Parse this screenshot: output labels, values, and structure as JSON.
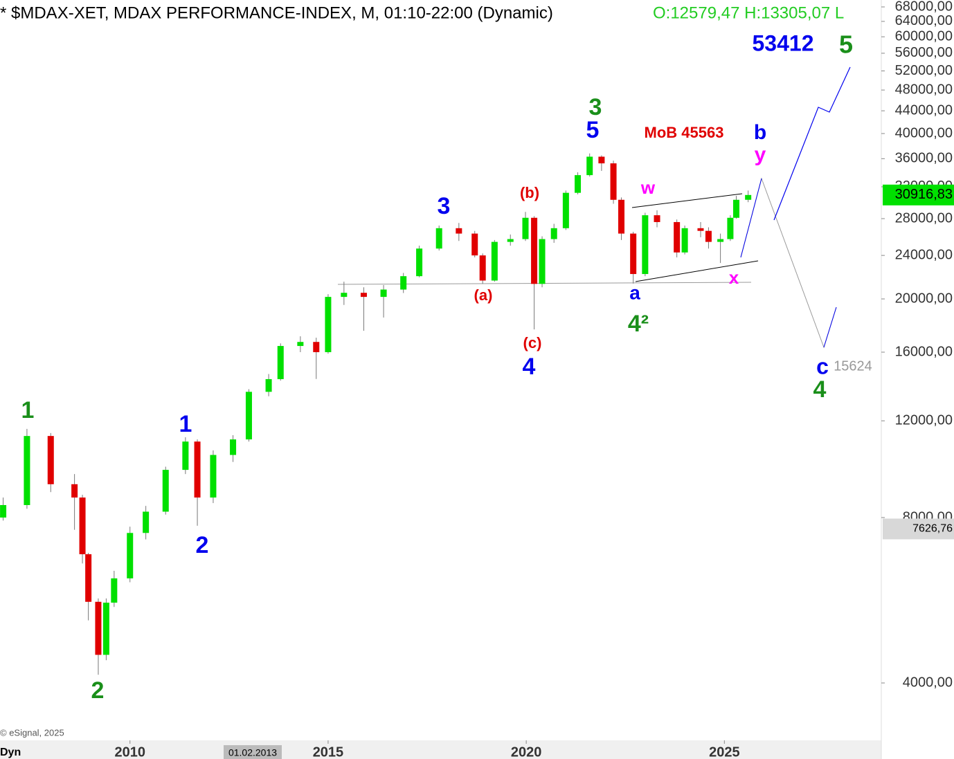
{
  "chart_data": {
    "type": "candlestick",
    "title": "* $MDAX-XET, MDAX PERFORMANCE-INDEX, M, 01:10-22:00 (Dynamic)",
    "subtitle": "O:12579,47 H:13305,07 L",
    "log_scale": true,
    "up_color": "#00e000",
    "down_color": "#e00000",
    "x": [
      2006.8,
      2007.4,
      2008.0,
      2008.6,
      2008.8,
      2008.95,
      2009.2,
      2009.4,
      2009.6,
      2010.0,
      2010.4,
      2010.9,
      2011.4,
      2011.7,
      2012.1,
      2012.6,
      2013.0,
      2013.5,
      2013.8,
      2014.3,
      2014.7,
      2015.0,
      2015.4,
      2015.9,
      2016.4,
      2016.9,
      2017.3,
      2017.8,
      2018.3,
      2018.7,
      2018.9,
      2019.2,
      2019.6,
      2019.98,
      2020.2,
      2020.4,
      2020.7,
      2021.0,
      2021.3,
      2021.6,
      2021.9,
      2022.2,
      2022.4,
      2022.7,
      2023.0,
      2023.3,
      2023.8,
      2024.0,
      2024.4,
      2024.6,
      2024.9,
      2025.15,
      2025.3,
      2025.6
    ],
    "open": [
      8000,
      8430,
      11260,
      9200,
      8700,
      6860,
      5620,
      4500,
      5600,
      6200,
      7500,
      8200,
      9770,
      11000,
      8700,
      10400,
      11100,
      13550,
      14290,
      16420,
      16700,
      16000,
      20170,
      20520,
      20170,
      20800,
      22000,
      24700,
      26900,
      26300,
      24000,
      21600,
      25400,
      25700,
      28100,
      21300,
      25700,
      26900,
      31200,
      33600,
      36300,
      35300,
      30300,
      26300,
      22200,
      28400,
      27600,
      24300,
      26900,
      26600,
      25400,
      25700,
      28100,
      30300
    ],
    "high": [
      8700,
      11600,
      11400,
      9600,
      8800,
      6900,
      5700,
      5700,
      6400,
      7700,
      8400,
      9900,
      11200,
      11100,
      10600,
      11300,
      13700,
      14600,
      16600,
      17100,
      17000,
      20400,
      21500,
      21000,
      21200,
      22300,
      25000,
      27200,
      27500,
      26600,
      24200,
      25600,
      26200,
      28800,
      28300,
      26000,
      27400,
      31500,
      34000,
      36800,
      36500,
      35700,
      30600,
      26500,
      28700,
      29000,
      27900,
      27200,
      27600,
      27000,
      26300,
      28400,
      30800,
      31500
    ],
    "low": [
      7900,
      8300,
      8900,
      7600,
      6600,
      5200,
      4140,
      4400,
      5500,
      6100,
      7300,
      8100,
      9600,
      7730,
      8500,
      10100,
      11000,
      13300,
      14200,
      16000,
      14300,
      15900,
      19500,
      17500,
      18500,
      20500,
      21900,
      24500,
      25500,
      23800,
      21300,
      21500,
      25000,
      25500,
      17600,
      21000,
      25300,
      26700,
      31000,
      33400,
      34200,
      29800,
      25600,
      21330,
      22000,
      27000,
      23800,
      24100,
      25900,
      24700,
      23250,
      25500,
      28000,
      30000
    ],
    "close": [
      8430,
      11260,
      9200,
      8700,
      6860,
      5620,
      4500,
      5600,
      6200,
      7500,
      8200,
      9770,
      11000,
      8700,
      10400,
      11100,
      13550,
      14290,
      16420,
      16700,
      16000,
      20170,
      20520,
      20170,
      20800,
      22000,
      24700,
      26900,
      26300,
      24000,
      21600,
      25400,
      25700,
      28100,
      21300,
      25700,
      26900,
      31200,
      33600,
      36300,
      35300,
      30300,
      26300,
      22200,
      28400,
      27600,
      24300,
      26900,
      26600,
      25400,
      25700,
      28100,
      30300,
      30917
    ],
    "xlim": [
      2006.72,
      2028.96
    ],
    "xticks": [
      2010,
      2015,
      2020,
      2025
    ],
    "ylim": [
      3145,
      70000
    ],
    "yticks": [
      {
        "value": 4000,
        "label": "4000,00"
      },
      {
        "value": 8000,
        "label": "8000,00"
      },
      {
        "value": 12000,
        "label": "12000,00"
      },
      {
        "value": 16000,
        "label": "16000,00"
      },
      {
        "value": 20000,
        "label": "20000,00"
      },
      {
        "value": 24000,
        "label": "24000,00"
      },
      {
        "value": 28000,
        "label": "28000,00"
      },
      {
        "value": 32000,
        "label": "32000,00"
      },
      {
        "value": 36000,
        "label": "36000,00"
      },
      {
        "value": 40000,
        "label": "40000,00"
      },
      {
        "value": 44000,
        "label": "44000,00"
      },
      {
        "value": 48000,
        "label": "48000,00"
      },
      {
        "value": 52000,
        "label": "52000,00"
      },
      {
        "value": 56000,
        "label": "56000,00"
      },
      {
        "value": 60000,
        "label": "60000,00"
      },
      {
        "value": 64000,
        "label": "64000,00"
      },
      {
        "value": 68000,
        "label": "68000,00"
      }
    ],
    "price_tags": [
      {
        "value": 30916.83,
        "label": "30916,83",
        "color": "#00e000"
      },
      {
        "value": 7626.76,
        "label": "7626,76",
        "color": "#d8d8d8"
      }
    ],
    "annotations": [
      {
        "text": "1",
        "color": "#1a8f1a"
      },
      {
        "text": "2",
        "color": "#1a8f1a"
      },
      {
        "text": "1",
        "color": "#0000ee"
      },
      {
        "text": "2",
        "color": "#0000ee"
      },
      {
        "text": "3",
        "color": "#0000ee"
      },
      {
        "text": "(a)",
        "color": "#e00000"
      },
      {
        "text": "(b)",
        "color": "#e00000"
      },
      {
        "text": "(c)",
        "color": "#e00000"
      },
      {
        "text": "4",
        "color": "#0000ee"
      },
      {
        "text": "3",
        "color": "#1a8f1a"
      },
      {
        "text": "5",
        "color": "#0000ee"
      },
      {
        "text": "MoB 45563",
        "color": "#e00000"
      },
      {
        "text": "w",
        "color": "#ff00ff"
      },
      {
        "text": "a",
        "color": "#0000ee"
      },
      {
        "text": "4²",
        "color": "#1a8f1a"
      },
      {
        "text": "x",
        "color": "#ff00ff"
      },
      {
        "text": "b",
        "color": "#0000ee"
      },
      {
        "text": "y",
        "color": "#ff00ff"
      },
      {
        "text": "53412",
        "color": "#0000ee"
      },
      {
        "text": "5",
        "color": "#1a8f1a"
      },
      {
        "text": "c",
        "color": "#0000ee"
      },
      {
        "text": "15624",
        "color": "#999999"
      },
      {
        "text": "4",
        "color": "#1a8f1a"
      }
    ],
    "footer": "© eSignal, 2025",
    "cursor_date": "01.02.2013",
    "corner_label": "Dyn"
  }
}
